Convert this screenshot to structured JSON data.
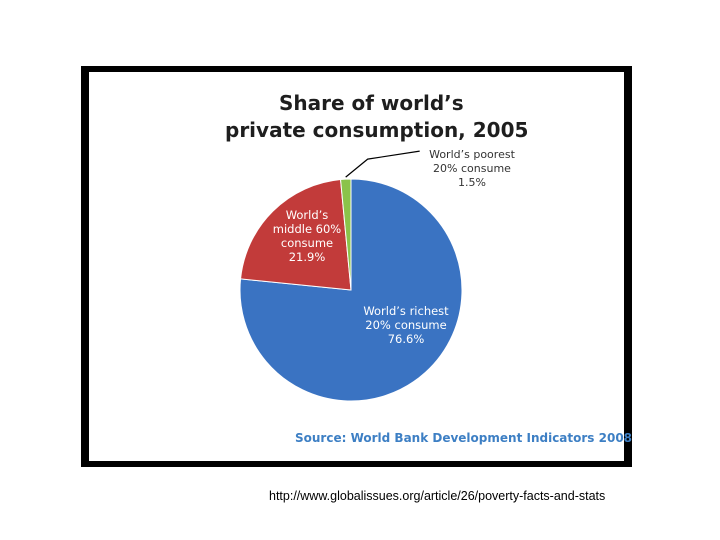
{
  "chart_data": {
    "type": "pie",
    "title_line1": "Share of world’s",
    "title_line2": "private consumption, 2005",
    "slices": [
      {
        "label": [
          "World’s richest",
          "20% consume",
          "76.6%"
        ],
        "value": 76.6,
        "color": "#3a73c2"
      },
      {
        "label": [
          "World’s",
          "middle 60%",
          "consume",
          "21.9%"
        ],
        "value": 21.9,
        "color": "#c23b3a"
      },
      {
        "label": [
          "World’s poorest",
          "20% consume",
          "1.5%"
        ],
        "value": 1.5,
        "color": "#8bc34a"
      }
    ],
    "source": "Source: World Bank Development Indicators 2008"
  },
  "caption": "http://www.globalissues.org/article/26/poverty-facts-and-stats"
}
